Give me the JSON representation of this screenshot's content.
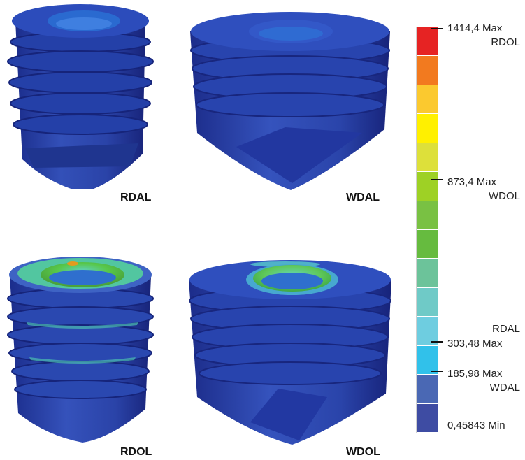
{
  "panels": [
    {
      "caption": "RDAL"
    },
    {
      "caption": "WDAL"
    },
    {
      "caption": "RDOL"
    },
    {
      "caption": "WDOL"
    }
  ],
  "scale": {
    "colors": [
      "#e62323",
      "#f27a1f",
      "#fbc92f",
      "#fff000",
      "#dde03a",
      "#9ed125",
      "#79c143",
      "#66bb3f",
      "#6cc39a",
      "#6fcac7",
      "#6ecde0",
      "#31c1ea",
      "#4a68b4",
      "#3e4ca3"
    ],
    "labels": {
      "max_rdol_value": "1414,4 Max",
      "max_rdol_name": "RDOL",
      "max_wdol_value": "873,4 Max",
      "max_wdol_name": "WDOL",
      "max_rdal_name": "RDAL",
      "max_rdal_value": "303,48 Max",
      "max_wdal_value": "185,98 Max",
      "max_wdal_name": "WDAL",
      "min_value": "0,45843 Min"
    }
  }
}
